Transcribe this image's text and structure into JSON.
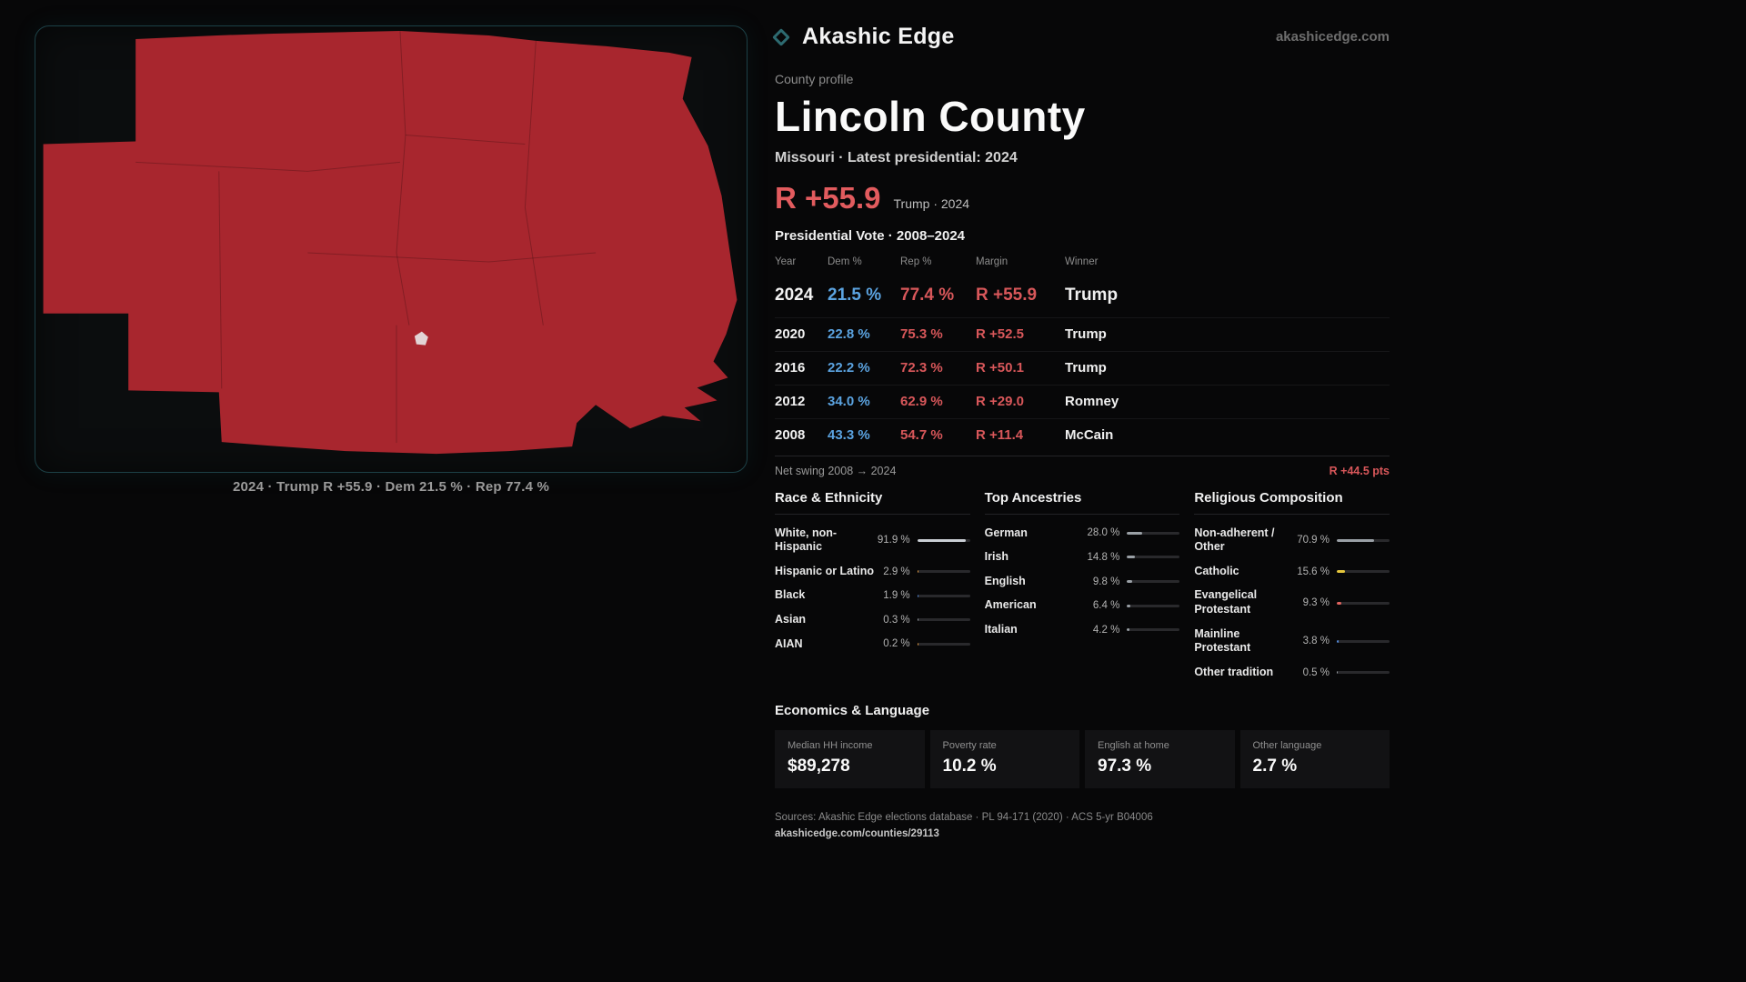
{
  "brand": {
    "name": "Akashic Edge",
    "site": "akashicedge.com"
  },
  "map": {
    "caption": "2024 · Trump R +55.9 · Dem 21.5 % · Rep 77.4 %",
    "fill": "#a8262e"
  },
  "profile": {
    "kicker": "County profile",
    "title": "Lincoln County",
    "subtitle": "Missouri · Latest presidential: 2024",
    "headline_margin": "R +55.9",
    "headline_note": "Trump · 2024"
  },
  "vote": {
    "title": "Presidential Vote · 2008–2024",
    "columns": [
      "Year",
      "Dem %",
      "Rep %",
      "Margin",
      "Winner"
    ],
    "rows": [
      {
        "year": "2024",
        "dem": "21.5 %",
        "rep": "77.4 %",
        "margin": "R +55.9",
        "winner": "Trump"
      },
      {
        "year": "2020",
        "dem": "22.8 %",
        "rep": "75.3 %",
        "margin": "R +52.5",
        "winner": "Trump"
      },
      {
        "year": "2016",
        "dem": "22.2 %",
        "rep": "72.3 %",
        "margin": "R +50.1",
        "winner": "Trump"
      },
      {
        "year": "2012",
        "dem": "34.0 %",
        "rep": "62.9 %",
        "margin": "R +29.0",
        "winner": "Romney"
      },
      {
        "year": "2008",
        "dem": "43.3 %",
        "rep": "54.7 %",
        "margin": "R +11.4",
        "winner": "McCain"
      }
    ]
  },
  "swing": {
    "label": "Net swing 2008 → 2024",
    "value": "R +44.5 pts"
  },
  "race": {
    "title": "Race & Ethnicity",
    "rows": [
      {
        "label": "White, non-Hispanic",
        "value": "91.9 %",
        "pct": 91.9,
        "color": "#c9ced4"
      },
      {
        "label": "Hispanic or Latino",
        "value": "2.9 %",
        "pct": 2.9,
        "color": "#e59a3c"
      },
      {
        "label": "Black",
        "value": "1.9 %",
        "pct": 1.9,
        "color": "#4f86d8"
      },
      {
        "label": "Asian",
        "value": "0.3 %",
        "pct": 0.3,
        "color": "#9aa0a6"
      },
      {
        "label": "AIAN",
        "value": "0.2 %",
        "pct": 0.2,
        "color": "#e59a3c"
      }
    ]
  },
  "ancestries": {
    "title": "Top Ancestries",
    "rows": [
      {
        "label": "German",
        "value": "28.0 %",
        "pct": 28.0,
        "color": "#9aa0a6"
      },
      {
        "label": "Irish",
        "value": "14.8 %",
        "pct": 14.8,
        "color": "#9aa0a6"
      },
      {
        "label": "English",
        "value": "9.8 %",
        "pct": 9.8,
        "color": "#9aa0a6"
      },
      {
        "label": "American",
        "value": "6.4 %",
        "pct": 6.4,
        "color": "#9aa0a6"
      },
      {
        "label": "Italian",
        "value": "4.2 %",
        "pct": 4.2,
        "color": "#9aa0a6"
      }
    ]
  },
  "religion": {
    "title": "Religious Composition",
    "rows": [
      {
        "label": "Non-adherent / Other",
        "value": "70.9 %",
        "pct": 70.9,
        "color": "#9aa0a6"
      },
      {
        "label": "Catholic",
        "value": "15.6 %",
        "pct": 15.6,
        "color": "#e5c63c"
      },
      {
        "label": "Evangelical Protestant",
        "value": "9.3 %",
        "pct": 9.3,
        "color": "#e0635e"
      },
      {
        "label": "Mainline Protestant",
        "value": "3.8 %",
        "pct": 3.8,
        "color": "#4f86d8"
      },
      {
        "label": "Other tradition",
        "value": "0.5 %",
        "pct": 0.5,
        "color": "#9aa0a6"
      }
    ]
  },
  "economics": {
    "title": "Economics & Language",
    "stats": [
      {
        "label": "Median HH income",
        "value": "$89,278"
      },
      {
        "label": "Poverty rate",
        "value": "10.2 %"
      },
      {
        "label": "English at home",
        "value": "97.3 %"
      },
      {
        "label": "Other language",
        "value": "2.7 %"
      }
    ]
  },
  "footer": {
    "sources": "Sources: Akashic Edge elections database · PL 94-171 (2020) · ACS 5-yr B04006",
    "permalink": "akashicedge.com/counties/29113"
  }
}
